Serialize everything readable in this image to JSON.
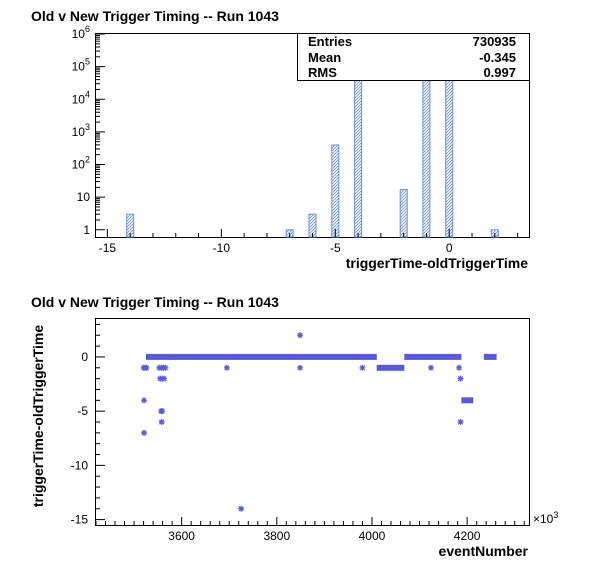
{
  "chart_data": [
    {
      "type": "bar",
      "title": "Old v New Trigger Timing -- Run 1043",
      "xlabel": "triggerTime-oldTriggerTime",
      "ylabel": "",
      "yscale": "log",
      "xlim": [
        -15.5,
        3.5
      ],
      "ylim": [
        0.6,
        1000000
      ],
      "x_ticks": [
        -15,
        -10,
        -5,
        0
      ],
      "y_ticks": [
        {
          "value": 1,
          "label": "1",
          "base": "",
          "exp": ""
        },
        {
          "value": 10,
          "label": "",
          "base": "10",
          "exp": ""
        },
        {
          "value": 100,
          "label": "",
          "base": "10",
          "exp": "2"
        },
        {
          "value": 1000,
          "label": "",
          "base": "10",
          "exp": "3"
        },
        {
          "value": 10000,
          "label": "",
          "base": "10",
          "exp": "4"
        },
        {
          "value": 100000,
          "label": "",
          "base": "10",
          "exp": "5"
        },
        {
          "value": 1000000,
          "label": "",
          "base": "10",
          "exp": "6"
        }
      ],
      "bins": [
        {
          "x": -14,
          "count": 3
        },
        {
          "x": -7,
          "count": 1
        },
        {
          "x": -6,
          "count": 3
        },
        {
          "x": -5,
          "count": 400
        },
        {
          "x": -4,
          "count": 45000
        },
        {
          "x": -2,
          "count": 17
        },
        {
          "x": -1,
          "count": 70000
        },
        {
          "x": 0,
          "count": 615000
        },
        {
          "x": 2,
          "count": 1
        }
      ],
      "bar_color": "#6c8ed8",
      "stats": [
        {
          "label": "Entries",
          "value": "730935"
        },
        {
          "label": "Mean",
          "value": "-0.345"
        },
        {
          "label": "RMS",
          "value": "0.997"
        }
      ]
    },
    {
      "type": "scatter",
      "title": "Old v New Trigger Timing -- Run 1043",
      "xlabel": "eventNumber",
      "ylabel": "triggerTime-oldTriggerTime",
      "x_multiplier": "×10",
      "x_multiplier_exp": "3",
      "xlim": [
        3420,
        4330
      ],
      "ylim": [
        -15.5,
        3.5
      ],
      "x_ticks": [
        3600,
        3800,
        4000,
        4200
      ],
      "y_ticks": [
        0,
        -5,
        -10,
        -15
      ],
      "marker_color": "#5a5ad6",
      "bands": [
        {
          "x0": 3525,
          "x1": 4010,
          "y": 0
        },
        {
          "x0": 4010,
          "x1": 4068,
          "y": -1
        },
        {
          "x0": 4068,
          "x1": 4188,
          "y": 0
        },
        {
          "x0": 4188,
          "x1": 4213,
          "y": -4
        },
        {
          "x0": 4235,
          "x1": 4262,
          "y": 0
        }
      ],
      "points": [
        {
          "x": 3520,
          "y": -1
        },
        {
          "x": 3523,
          "y": -1
        },
        {
          "x": 3526,
          "y": -1
        },
        {
          "x": 3521,
          "y": -4
        },
        {
          "x": 3521,
          "y": -7
        },
        {
          "x": 3553,
          "y": -1
        },
        {
          "x": 3555,
          "y": -2
        },
        {
          "x": 3558,
          "y": -1
        },
        {
          "x": 3559,
          "y": -2
        },
        {
          "x": 3561,
          "y": -1
        },
        {
          "x": 3563,
          "y": -2
        },
        {
          "x": 3566,
          "y": -1
        },
        {
          "x": 3557,
          "y": -5
        },
        {
          "x": 3559,
          "y": -5
        },
        {
          "x": 3558,
          "y": -6
        },
        {
          "x": 3695,
          "y": -1
        },
        {
          "x": 3725,
          "y": -14
        },
        {
          "x": 3849,
          "y": 2
        },
        {
          "x": 3849,
          "y": -1
        },
        {
          "x": 3980,
          "y": -1
        },
        {
          "x": 4124,
          "y": -1
        },
        {
          "x": 4183,
          "y": -1
        },
        {
          "x": 4186,
          "y": -2
        },
        {
          "x": 4186,
          "y": -6
        }
      ]
    }
  ]
}
